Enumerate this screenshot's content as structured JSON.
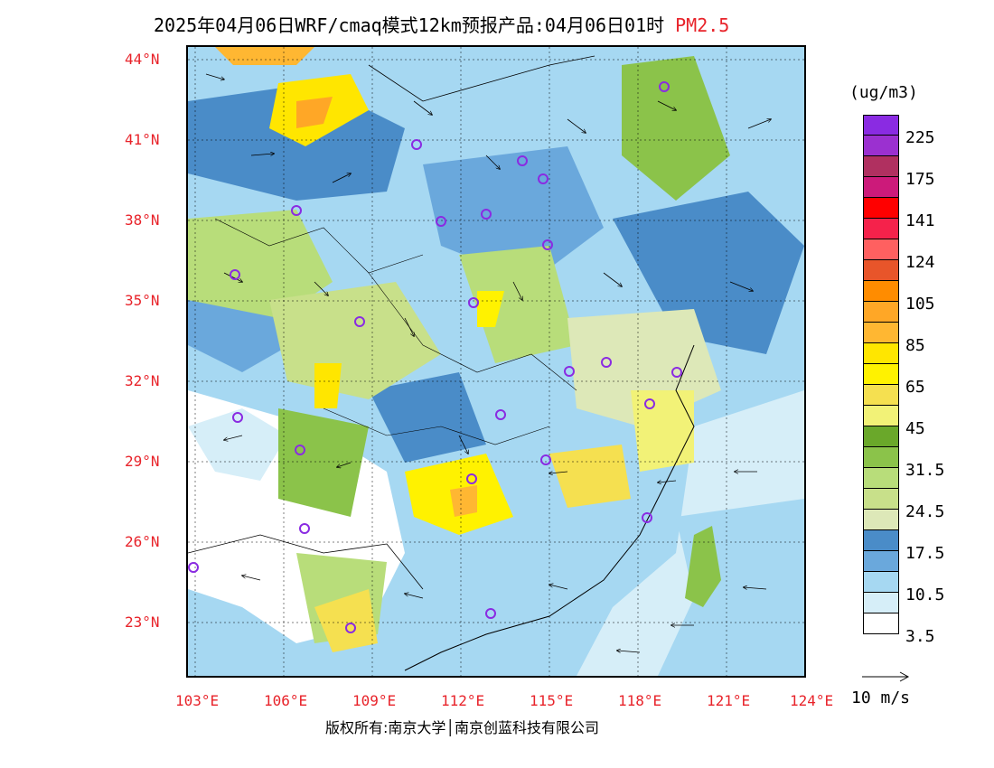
{
  "header": {
    "title": "2025年04月06日WRF/cmaq模式12km预报产品:04月06日01时",
    "pollutant": "PM2.5"
  },
  "map": {
    "lat_labels": [
      "44°N",
      "41°N",
      "38°N",
      "35°N",
      "32°N",
      "29°N",
      "26°N",
      "23°N"
    ],
    "lon_labels": [
      "103°E",
      "106°E",
      "109°E",
      "112°E",
      "115°E",
      "118°E",
      "121°E",
      "124°E"
    ]
  },
  "colorbar": {
    "unit": "(ug/m3)",
    "colors": [
      "#8a2be2",
      "#9b30d0",
      "#b03060",
      "#cc1a7a",
      "#ff0000",
      "#f5224b",
      "#ff6060",
      "#e8552a",
      "#ff8c00",
      "#ffa726",
      "#ffb732",
      "#ffe600",
      "#fff200",
      "#f5e050",
      "#f2f277",
      "#6aa82a",
      "#8bc34a",
      "#b8dd7a",
      "#c8e08a",
      "#dde8b8",
      "#4a8cc8",
      "#6aa8dc",
      "#a6d8f2",
      "#d6eef8",
      "#ffffff"
    ],
    "labels": [
      "225",
      "175",
      "141",
      "124",
      "105",
      "85",
      "65",
      "45",
      "31.5",
      "24.5",
      "17.5",
      "10.5",
      "3.5"
    ]
  },
  "wind_key": {
    "label": "10 m/s"
  },
  "footer": {
    "copyright": "版权所有:南京大学│南京创蓝科技有限公司"
  }
}
